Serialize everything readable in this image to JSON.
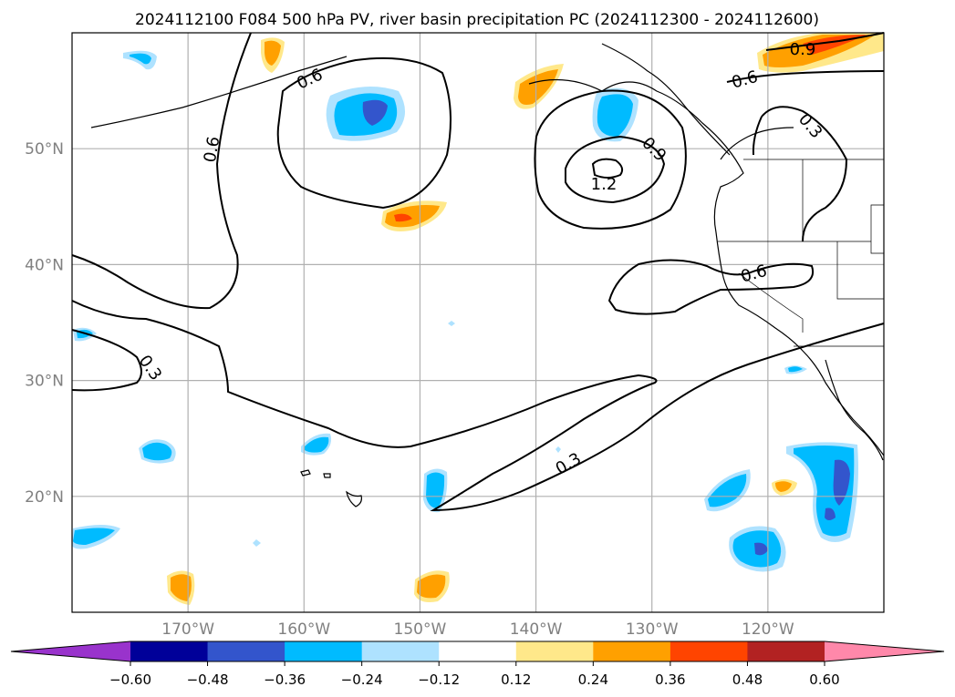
{
  "title": "2024112100 F084 500 hPa PV, river basin precipitation PC (2024112300 - 2024112600)",
  "map": {
    "lon_range": [
      -180,
      -110
    ],
    "lat_range": [
      10,
      60
    ],
    "lon_ticks": [
      "170°W",
      "160°W",
      "150°W",
      "140°W",
      "130°W",
      "120°W"
    ],
    "lat_ticks": [
      "20°N",
      "30°N",
      "40°N",
      "50°N"
    ],
    "gridlines": true,
    "contour_color": "#000000",
    "grid_color": "#b0b0b0",
    "tick_label_color": "#808080"
  },
  "contour_labels": [
    "0.6",
    "0.6",
    "0.9",
    "0.3",
    "1.2",
    "0.9",
    "0.6",
    "0.3",
    "0.3"
  ],
  "colorbar": {
    "ticks": [
      "−0.60",
      "−0.48",
      "−0.36",
      "−0.24",
      "−0.12",
      "0.12",
      "0.24",
      "0.36",
      "0.48",
      "0.60"
    ],
    "under_color": "#9933cc",
    "over_color": "#ff88aa",
    "segments": [
      "#000099",
      "#3355cc",
      "#00bbff",
      "#aee2ff",
      "#ffffff",
      "#ffe88a",
      "#ffa000",
      "#ff4400",
      "#b22222"
    ]
  },
  "legend_colors": {
    "neg_strong": "#3355cc",
    "neg_mid": "#00bbff",
    "neg_weak": "#aee2ff",
    "pos_weak": "#ffe88a",
    "pos_mid": "#ffa000",
    "pos_strong": "#ff4400"
  }
}
